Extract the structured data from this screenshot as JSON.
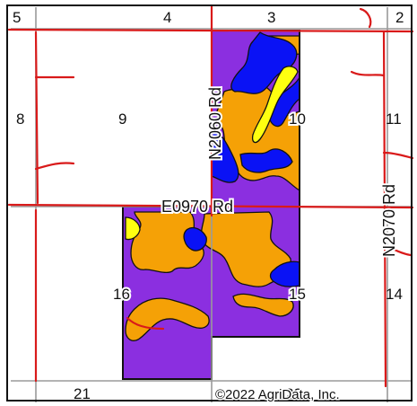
{
  "map": {
    "colors": {
      "purple": "#8b2fe0",
      "orange": "#f5a106",
      "blue": "#0a12f5",
      "yellow": "#ffff10",
      "road": "#d91a1a",
      "section_line": "#9a9a9a",
      "frame": "#111111"
    },
    "section_numbers": {
      "s5": "5",
      "s4": "4",
      "s3": "3",
      "s2": "2",
      "s8": "8",
      "s9": "9",
      "s10": "10",
      "s11": "11",
      "s16": "16",
      "s15": "15",
      "s14": "14",
      "s21": "21",
      "s22": "22"
    },
    "roads": {
      "n2060": "N2060 Rd",
      "e0970": "E0970 Rd",
      "n2070": "N2070 Rd"
    },
    "copyright": "©2022 AgriData, Inc."
  }
}
